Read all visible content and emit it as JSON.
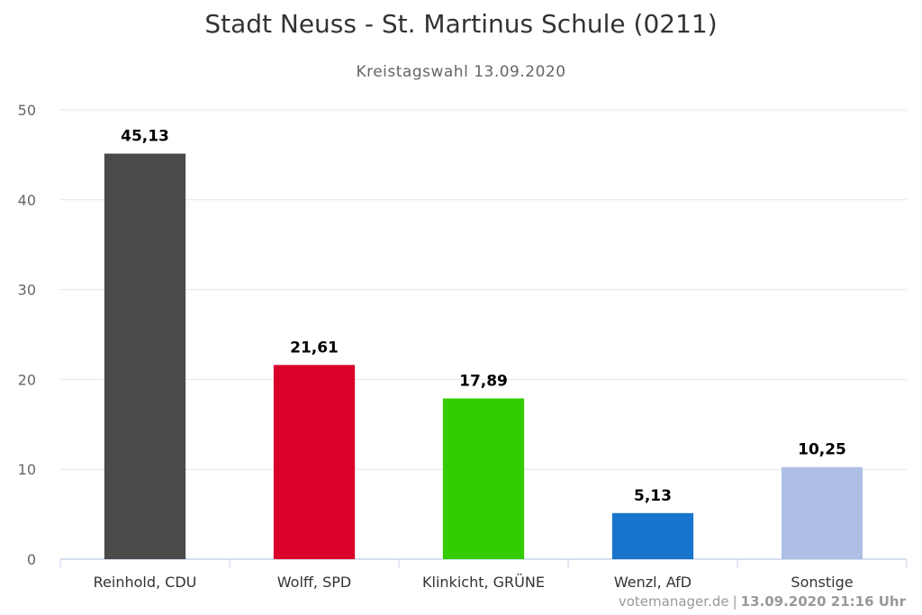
{
  "chart_data": {
    "type": "bar",
    "title": "Stadt Neuss - St. Martinus Schule (0211)",
    "subtitle": "Kreistagswahl 13.09.2020",
    "categories": [
      "Reinhold, CDU",
      "Wolff, SPD",
      "Klinkicht, GRÜNE",
      "Wenzl, AfD",
      "Sonstige"
    ],
    "values": [
      45.13,
      21.61,
      17.89,
      5.13,
      10.25
    ],
    "data_labels": [
      "45,13",
      "21,61",
      "17,89",
      "5,13",
      "10,25"
    ],
    "colors": [
      "#4a4a4a",
      "#d9002a",
      "#33cc00",
      "#1874cd",
      "#aebfe6"
    ],
    "ylim": [
      0,
      50
    ],
    "yticks": [
      0,
      10,
      20,
      30,
      40,
      50
    ],
    "grid": true,
    "legend": "none",
    "xlabel": "",
    "ylabel": ""
  },
  "credit": {
    "source": "votemanager.de",
    "separator": "|",
    "timestamp": "13.09.2020 21:16 Uhr"
  }
}
